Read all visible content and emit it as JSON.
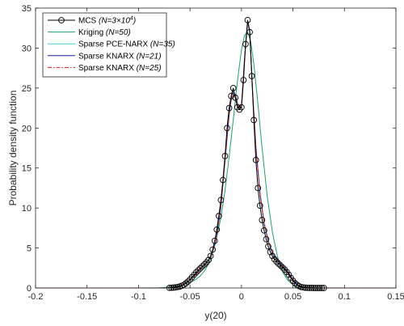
{
  "chart_data": {
    "type": "line",
    "title": "",
    "xlabel": "y(20)",
    "ylabel": "Probability density function",
    "xlim": [
      -0.2,
      0.15
    ],
    "ylim": [
      0,
      35
    ],
    "xticks": [
      -0.2,
      -0.15,
      -0.1,
      -0.05,
      0,
      0.05,
      0.1,
      0.15
    ],
    "xtick_labels": [
      "-0.2",
      "-0.15",
      "-0.1",
      "-0.05",
      "0",
      "0.05",
      "0.1",
      "0.15"
    ],
    "yticks": [
      0,
      5,
      10,
      15,
      20,
      25,
      30,
      35
    ],
    "ytick_labels": [
      "0",
      "5",
      "10",
      "15",
      "20",
      "25",
      "30",
      "35"
    ],
    "grid": false,
    "legend_position": "top-left",
    "series": [
      {
        "name": "MCS",
        "name_suffix": "(N=3×10",
        "name_sup": "4",
        "name_close": ")",
        "style": "markers-circle",
        "color": "#000000",
        "marker_color": "#000000",
        "x": [
          -0.07,
          -0.068,
          -0.066,
          -0.064,
          -0.062,
          -0.06,
          -0.058,
          -0.056,
          -0.054,
          -0.052,
          -0.05,
          -0.048,
          -0.046,
          -0.044,
          -0.042,
          -0.04,
          -0.038,
          -0.036,
          -0.034,
          -0.032,
          -0.03,
          -0.028,
          -0.026,
          -0.024,
          -0.022,
          -0.02,
          -0.018,
          -0.016,
          -0.014,
          -0.012,
          -0.01,
          -0.008,
          -0.006,
          -0.004,
          -0.002,
          0,
          0.002,
          0.004,
          0.006,
          0.008,
          0.01,
          0.012,
          0.014,
          0.016,
          0.018,
          0.02,
          0.022,
          0.024,
          0.026,
          0.028,
          0.03,
          0.032,
          0.034,
          0.036,
          0.038,
          0.04,
          0.042,
          0.044,
          0.046,
          0.048,
          0.05,
          0.052,
          0.054,
          0.056,
          0.058,
          0.06,
          0.062,
          0.064,
          0.066,
          0.068,
          0.07,
          0.072,
          0.074,
          0.076,
          0.078,
          0.08
        ],
        "y": [
          0.02,
          0.03,
          0.05,
          0.08,
          0.12,
          0.18,
          0.28,
          0.4,
          0.58,
          0.8,
          1.05,
          1.35,
          1.65,
          1.95,
          2.2,
          2.45,
          2.7,
          2.95,
          3.2,
          3.5,
          4.0,
          4.8,
          5.9,
          7.3,
          9.0,
          11.0,
          13.5,
          16.5,
          20.0,
          22.5,
          24.0,
          25.0,
          23.8,
          22.6,
          22.3,
          22.6,
          26.0,
          30.5,
          33.5,
          32.0,
          26.5,
          21.0,
          16.0,
          12.5,
          10.3,
          8.5,
          7.2,
          6.1,
          5.2,
          4.5,
          4.0,
          3.6,
          3.3,
          3.05,
          2.8,
          2.55,
          2.3,
          2.0,
          1.65,
          1.25,
          0.9,
          0.6,
          0.38,
          0.22,
          0.12,
          0.07,
          0.04,
          0.02,
          0.01,
          0.01,
          0.0,
          0.0,
          0.0,
          0.0,
          0.0,
          0.0
        ]
      },
      {
        "name": "Kriging",
        "name_suffix": "(N=50)",
        "style": "solid",
        "color": "#1f9e6e",
        "x": [
          -0.2,
          -0.12,
          -0.09,
          -0.08,
          -0.07,
          -0.06,
          -0.05,
          -0.045,
          -0.04,
          -0.035,
          -0.03,
          -0.025,
          -0.02,
          -0.016,
          -0.012,
          -0.008,
          -0.004,
          0,
          0.003,
          0.006,
          0.009,
          0.012,
          0.016,
          0.02,
          0.025,
          0.03,
          0.035,
          0.04,
          0.045,
          0.05,
          0.055,
          0.06,
          0.07,
          0.09,
          0.15
        ],
        "y": [
          0,
          0,
          0.01,
          0.03,
          0.1,
          0.3,
          0.7,
          1.0,
          1.5,
          2.3,
          3.6,
          5.7,
          8.8,
          12.2,
          16.4,
          21.0,
          25.8,
          29.8,
          31.6,
          32.0,
          30.8,
          28.0,
          23.0,
          17.5,
          11.5,
          7.0,
          3.9,
          2.0,
          0.95,
          0.42,
          0.17,
          0.06,
          0.01,
          0,
          0
        ]
      },
      {
        "name": "Sparse PCE-NARX",
        "name_suffix": "(N=35)",
        "style": "solid",
        "color": "#3fd4e0",
        "x": [
          -0.2,
          -0.08,
          -0.07,
          -0.06,
          -0.05,
          -0.045,
          -0.04,
          -0.035,
          -0.03,
          -0.025,
          -0.02,
          -0.016,
          -0.012,
          -0.009,
          -0.006,
          -0.003,
          0,
          0.003,
          0.006,
          0.008,
          0.011,
          0.014,
          0.018,
          0.022,
          0.026,
          0.03,
          0.035,
          0.04,
          0.045,
          0.05,
          0.055,
          0.06,
          0.07,
          0.15
        ],
        "y": [
          0,
          0,
          0.03,
          0.2,
          1.0,
          1.6,
          2.35,
          2.95,
          3.8,
          5.7,
          10.0,
          15.8,
          21.5,
          24.3,
          24.0,
          22.6,
          22.7,
          28.5,
          33.2,
          32.0,
          24.0,
          17.5,
          11.8,
          8.0,
          5.8,
          4.3,
          3.4,
          2.65,
          2.0,
          1.0,
          0.35,
          0.1,
          0.01,
          0
        ]
      },
      {
        "name": "Sparse KNARX",
        "name_suffix": "(N=21)",
        "style": "solid",
        "color": "#1c1ca8",
        "x": [
          -0.2,
          -0.08,
          -0.07,
          -0.06,
          -0.05,
          -0.045,
          -0.04,
          -0.035,
          -0.03,
          -0.025,
          -0.02,
          -0.016,
          -0.012,
          -0.009,
          -0.006,
          -0.003,
          0,
          0.003,
          0.006,
          0.008,
          0.011,
          0.014,
          0.018,
          0.022,
          0.026,
          0.03,
          0.035,
          0.04,
          0.045,
          0.05,
          0.055,
          0.06,
          0.07,
          0.15
        ],
        "y": [
          0,
          0,
          0.02,
          0.18,
          1.0,
          1.65,
          2.4,
          3.0,
          3.85,
          5.8,
          10.2,
          16.0,
          21.8,
          24.6,
          24.2,
          22.7,
          22.8,
          28.8,
          33.4,
          32.2,
          24.2,
          17.6,
          11.9,
          8.1,
          5.9,
          4.35,
          3.45,
          2.7,
          2.05,
          1.05,
          0.37,
          0.1,
          0.01,
          0
        ]
      },
      {
        "name": "Sparse KNARX",
        "name_suffix": "(N=25)",
        "style": "dash-dot",
        "color": "#d62020",
        "x": [
          -0.2,
          -0.08,
          -0.07,
          -0.06,
          -0.05,
          -0.045,
          -0.04,
          -0.035,
          -0.03,
          -0.025,
          -0.02,
          -0.016,
          -0.012,
          -0.009,
          -0.006,
          -0.003,
          0,
          0.003,
          0.006,
          0.008,
          0.011,
          0.014,
          0.018,
          0.022,
          0.026,
          0.03,
          0.035,
          0.04,
          0.045,
          0.05,
          0.055,
          0.06,
          0.07,
          0.15
        ],
        "y": [
          0,
          0,
          0.02,
          0.19,
          1.02,
          1.62,
          2.38,
          2.98,
          3.82,
          5.75,
          10.1,
          15.9,
          21.6,
          24.4,
          24.1,
          22.65,
          22.75,
          28.6,
          33.3,
          32.1,
          24.1,
          17.55,
          11.85,
          8.05,
          5.85,
          4.32,
          3.42,
          2.68,
          2.02,
          1.02,
          0.36,
          0.1,
          0.01,
          0
        ]
      }
    ]
  }
}
